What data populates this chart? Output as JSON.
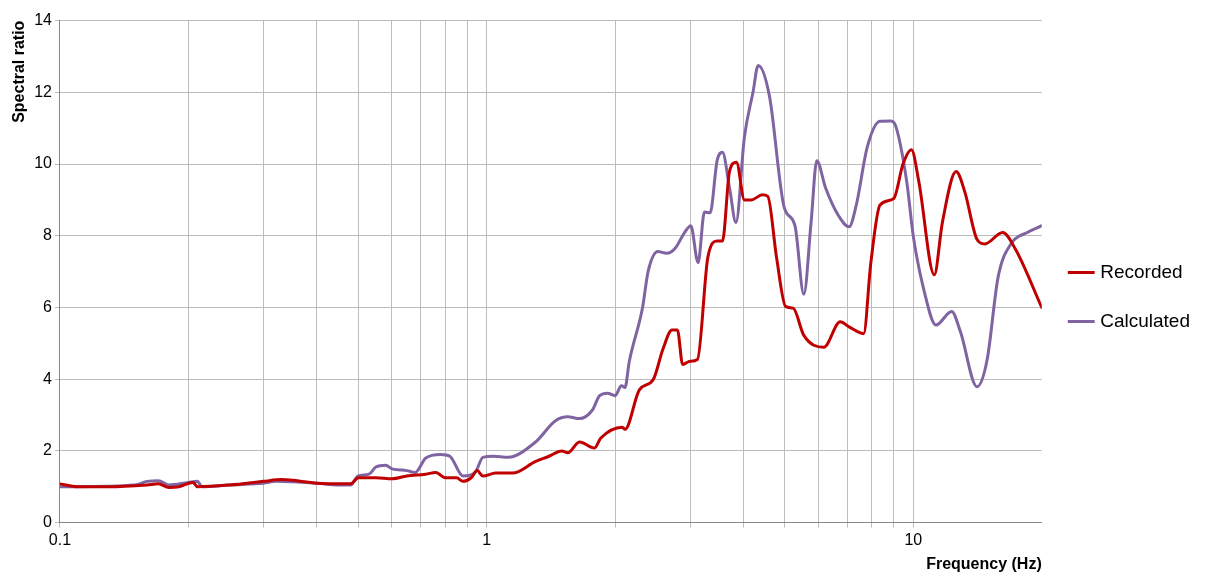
{
  "chart_data": {
    "type": "line",
    "xlabel": "Frequency (Hz)",
    "ylabel": "Spectral ratio",
    "log": "x",
    "xlim": [
      0.1,
      20
    ],
    "ylim": [
      0,
      14
    ],
    "xticks": [
      0.1,
      {
        "value": 0.2,
        "label": null
      },
      {
        "value": 0.3,
        "label": null
      },
      {
        "value": 0.4,
        "label": null
      },
      {
        "value": 0.5,
        "label": null
      },
      {
        "value": 0.6,
        "label": null
      },
      {
        "value": 0.7,
        "label": null
      },
      {
        "value": 0.8,
        "label": null
      },
      {
        "value": 0.9,
        "label": null
      },
      1,
      {
        "value": 2,
        "label": null
      },
      {
        "value": 3,
        "label": null
      },
      {
        "value": 4,
        "label": null
      },
      {
        "value": 5,
        "label": null
      },
      {
        "value": 6,
        "label": null
      },
      {
        "value": 7,
        "label": null
      },
      {
        "value": 8,
        "label": null
      },
      {
        "value": 9,
        "label": null
      },
      10
    ],
    "yticks": [
      0,
      2,
      4,
      6,
      8,
      10,
      12,
      14
    ],
    "grid": true,
    "legend": "right",
    "marker": "none",
    "line_style": "solid",
    "series": [
      {
        "name": "Recorded",
        "color": "#c00000",
        "x": [
          0.1,
          0.11,
          0.13,
          0.16,
          0.17,
          0.18,
          0.19,
          0.205,
          0.21,
          0.25,
          0.3,
          0.33,
          0.4,
          0.45,
          0.48,
          0.5,
          0.55,
          0.6,
          0.65,
          0.72,
          0.76,
          0.8,
          0.85,
          0.88,
          0.92,
          0.95,
          0.98,
          1.05,
          1.15,
          1.3,
          1.4,
          1.5,
          1.55,
          1.65,
          1.79,
          1.85,
          2.08,
          2.11,
          2.28,
          2.46,
          2.59,
          2.72,
          2.8,
          2.88,
          3.0,
          3.12,
          3.3,
          3.47,
          3.57,
          3.71,
          3.85,
          4.02,
          4.17,
          4.43,
          4.56,
          4.78,
          5.02,
          5.23,
          5.54,
          6.17,
          6.74,
          7.07,
          7.65,
          7.95,
          8.35,
          9.0,
          9.46,
          9.9,
          10.3,
          11.2,
          11.7,
          12.6,
          13.2,
          14.1,
          14.7,
          16.2,
          17.4,
          20
        ],
        "values": [
          1.08,
          1.0,
          1.0,
          1.05,
          1.08,
          0.98,
          1.0,
          1.12,
          1.0,
          1.05,
          1.15,
          1.2,
          1.1,
          1.08,
          1.08,
          1.25,
          1.25,
          1.22,
          1.3,
          1.35,
          1.4,
          1.25,
          1.25,
          1.15,
          1.25,
          1.45,
          1.3,
          1.38,
          1.38,
          1.7,
          1.85,
          2.0,
          1.95,
          2.25,
          2.08,
          2.35,
          2.66,
          2.6,
          3.7,
          4.0,
          4.84,
          5.37,
          5.37,
          4.41,
          4.5,
          4.55,
          7.4,
          7.85,
          7.85,
          9.8,
          10.05,
          9.0,
          9.0,
          9.14,
          9.1,
          7.4,
          6.03,
          5.98,
          5.22,
          4.89,
          5.6,
          5.46,
          5.27,
          7.23,
          8.85,
          9.04,
          10.0,
          10.4,
          9.52,
          6.91,
          8.37,
          9.79,
          9.23,
          7.9,
          7.77,
          8.09,
          7.6,
          6.0
        ]
      },
      {
        "name": "Calculated",
        "color": "#8064a2",
        "x": [
          0.1,
          0.15,
          0.16,
          0.17,
          0.18,
          0.2,
          0.21,
          0.215,
          0.25,
          0.3,
          0.32,
          0.4,
          0.45,
          0.48,
          0.5,
          0.53,
          0.55,
          0.58,
          0.6,
          0.65,
          0.68,
          0.72,
          0.78,
          0.82,
          0.88,
          0.94,
          0.98,
          1.04,
          1.12,
          1.3,
          1.45,
          1.55,
          1.65,
          1.77,
          1.84,
          1.92,
          2.0,
          2.07,
          2.11,
          2.16,
          2.32,
          2.39,
          2.52,
          2.64,
          2.77,
          2.91,
          3.01,
          3.13,
          3.24,
          3.34,
          3.47,
          3.57,
          3.71,
          3.84,
          4.02,
          4.21,
          4.33,
          4.6,
          4.98,
          5.28,
          5.54,
          5.76,
          5.94,
          6.23,
          6.67,
          7.07,
          7.35,
          7.8,
          8.35,
          8.86,
          9.1,
          9.65,
          10.0,
          10.6,
          11.3,
          12.3,
          12.9,
          14.1,
          14.9,
          15.8,
          17.0,
          18.5,
          20
        ],
        "values": [
          1.0,
          1.05,
          1.15,
          1.17,
          1.05,
          1.12,
          1.15,
          1.0,
          1.05,
          1.1,
          1.15,
          1.1,
          1.05,
          1.05,
          1.3,
          1.35,
          1.55,
          1.6,
          1.5,
          1.45,
          1.4,
          1.8,
          1.9,
          1.85,
          1.3,
          1.4,
          1.82,
          1.85,
          1.82,
          2.24,
          2.84,
          2.95,
          2.9,
          3.14,
          3.54,
          3.61,
          3.54,
          3.82,
          3.77,
          4.5,
          6.0,
          7.0,
          7.56,
          7.51,
          7.66,
          8.09,
          8.28,
          7.25,
          8.66,
          8.64,
          10.1,
          10.33,
          9.33,
          8.37,
          10.76,
          12.0,
          12.75,
          11.9,
          8.8,
          8.28,
          6.37,
          8.37,
          10.09,
          9.33,
          8.57,
          8.25,
          8.85,
          10.47,
          11.19,
          11.2,
          11.05,
          9.52,
          7.99,
          6.46,
          5.51,
          5.89,
          5.32,
          3.79,
          4.55,
          6.84,
          7.8,
          8.09,
          8.28
        ]
      }
    ]
  }
}
